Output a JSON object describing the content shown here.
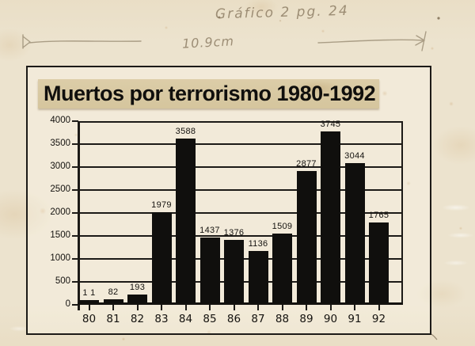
{
  "annotations": {
    "top_note": "Gráfico 2 pg. 24",
    "measurement_label": "10.9cm"
  },
  "chart": {
    "title": "Muertos por terrorismo 1980-1992"
  },
  "chart_data": {
    "type": "bar",
    "title": "Muertos por terrorismo 1980-1992",
    "categories": [
      "80",
      "81",
      "82",
      "83",
      "84",
      "85",
      "86",
      "87",
      "88",
      "89",
      "90",
      "91",
      "92"
    ],
    "values": [
      11,
      82,
      193,
      1979,
      3588,
      1437,
      1376,
      1136,
      1509,
      2877,
      3745,
      3044,
      1765
    ],
    "bar_labels": [
      "1 1",
      "82",
      "193",
      "1979",
      "3588",
      "1437",
      "1376",
      "1136",
      "1509",
      "2877",
      "3745",
      "3044",
      "1765"
    ],
    "xlabel": "",
    "ylabel": "",
    "ylim": [
      0,
      4000
    ],
    "yticks": [
      0,
      500,
      1000,
      1500,
      2000,
      2500,
      3000,
      3500,
      4000
    ],
    "grid": true,
    "legend": false,
    "bar_color": "#100f0d"
  },
  "colors": {
    "paper": "#ece3ce",
    "title_strip": "#d8c9a2",
    "ink": "#14120f",
    "pencil": "#8f7f66"
  }
}
